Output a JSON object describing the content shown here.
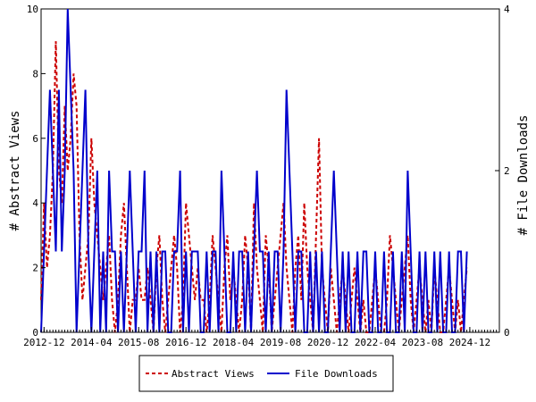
{
  "chart_data": {
    "type": "line",
    "xlabel": "",
    "ylabel_left": "# Abstract Views",
    "ylabel_right": "# File Downloads",
    "ylim_left": [
      0,
      10
    ],
    "ylim_right": [
      0,
      4
    ],
    "x_range": [
      "2012-11",
      "2025-10"
    ],
    "x_tick_labels": [
      "2012-12",
      "2014-04",
      "2015-08",
      "2016-12",
      "2018-04",
      "2019-08",
      "2020-12",
      "2022-04",
      "2023-08",
      "2024-12"
    ],
    "y_ticks_left": [
      "0",
      "2",
      "4",
      "6",
      "8",
      "10"
    ],
    "y_ticks_right": [
      "0",
      "2",
      "4"
    ],
    "grid": false,
    "legend_position": "bottom",
    "series": [
      {
        "name": "Abstract Views",
        "axis": "left",
        "color": "#cc0000",
        "style": "dashed",
        "start": "2012-11",
        "values": [
          1,
          4,
          2,
          3,
          5,
          9,
          5,
          4,
          7,
          5,
          6,
          8,
          7,
          3,
          1,
          2,
          3,
          6,
          4,
          3,
          2,
          1,
          2,
          3,
          1,
          0,
          1,
          3,
          4,
          2,
          0,
          1,
          1,
          2,
          1,
          1,
          2,
          1,
          0,
          2,
          3,
          1,
          0,
          1,
          2,
          3,
          2,
          0,
          1,
          4,
          3,
          2,
          1,
          2,
          1,
          1,
          0,
          1,
          3,
          2,
          1,
          0,
          2,
          3,
          1,
          2,
          1,
          0,
          1,
          3,
          2,
          0,
          4,
          2,
          1,
          0,
          3,
          2,
          0,
          1,
          2,
          3,
          4,
          2,
          1,
          0,
          2,
          3,
          1,
          4,
          2,
          1,
          0,
          3,
          6,
          2,
          1,
          0,
          2,
          1,
          0,
          1,
          2,
          1,
          0,
          1,
          2,
          1,
          0,
          1,
          0,
          0,
          1,
          2,
          1,
          0,
          0,
          1,
          3,
          2,
          1,
          0,
          1,
          2,
          3,
          1,
          0,
          1,
          2,
          1,
          0,
          1,
          0,
          2,
          1,
          0,
          0,
          1,
          2,
          1,
          0,
          1,
          0,
          1,
          2
        ]
      },
      {
        "name": "File Downloads",
        "axis": "right",
        "color": "#0000cc",
        "style": "solid",
        "start": "2012-11",
        "values": [
          0,
          1,
          2,
          3,
          2,
          1,
          3,
          1,
          2,
          4,
          3,
          2,
          0,
          1,
          2,
          3,
          1,
          0,
          1,
          2,
          0,
          1,
          0,
          2,
          1,
          1,
          0,
          1,
          0,
          1,
          2,
          1,
          0,
          1,
          1,
          2,
          0,
          1,
          0,
          1,
          0,
          1,
          1,
          0,
          0,
          1,
          1,
          2,
          0,
          1,
          0,
          1,
          1,
          1,
          0,
          0,
          1,
          0,
          1,
          1,
          0,
          2,
          1,
          0,
          0,
          1,
          0,
          1,
          1,
          0,
          1,
          0,
          1,
          2,
          1,
          1,
          0,
          1,
          0,
          1,
          1,
          0,
          1,
          3,
          2,
          1,
          0,
          1,
          1,
          0,
          0,
          1,
          0,
          1,
          0,
          1,
          0,
          0,
          1,
          2,
          1,
          0,
          1,
          0,
          1,
          0,
          0,
          1,
          0,
          1,
          1,
          0,
          0,
          1,
          0,
          0,
          1,
          0,
          0,
          1,
          0,
          0,
          1,
          0,
          2,
          1,
          0,
          0,
          1,
          0,
          1,
          0,
          0,
          1,
          0,
          1,
          0,
          0,
          1,
          0,
          0,
          1,
          1,
          0,
          1
        ]
      }
    ]
  }
}
